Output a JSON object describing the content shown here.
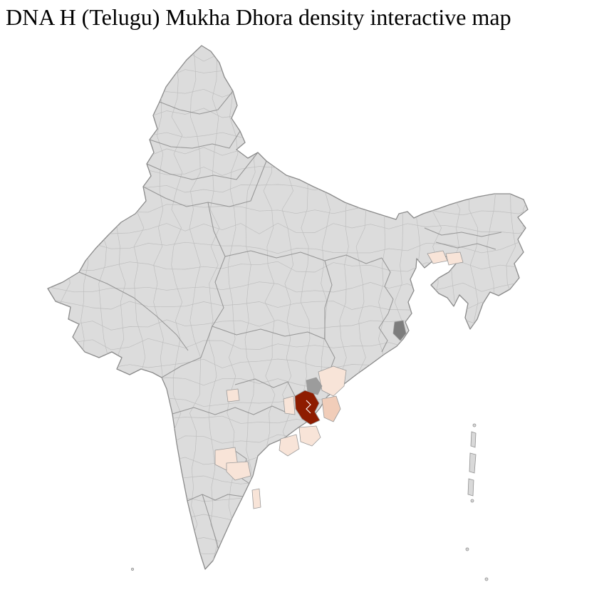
{
  "page": {
    "title": "DNA H (Telugu) Mukha Dhora density interactive map"
  },
  "map": {
    "colors": {
      "base": "#dcdcdc",
      "outline": "#8a8a8a",
      "district_line": "#bdbdbd",
      "state_line": "#8a8a8a",
      "density_high": "#8e1c00",
      "density_mid": "#f1cdb9",
      "density_low": "#f8e4d8",
      "neutral_dark": "#7d7d7d",
      "neutral_mid": "#9c9c9c",
      "island": "#d9d9d9"
    }
  }
}
